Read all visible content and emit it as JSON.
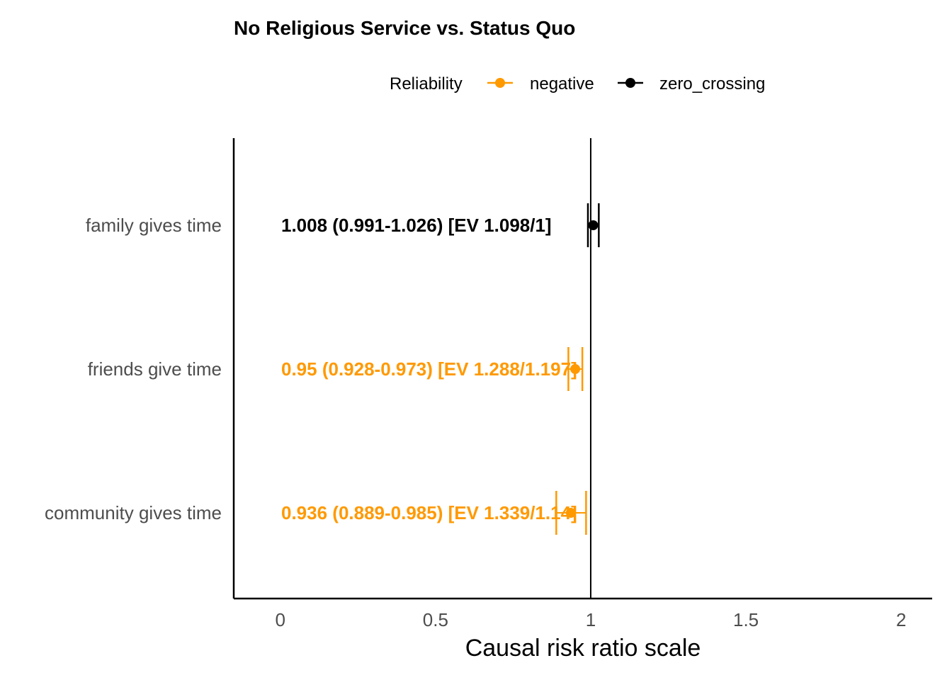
{
  "chart_data": {
    "type": "forest",
    "title": "No Religious Service vs. Status Quo",
    "xlabel": "Causal risk ratio scale",
    "ylabel": "",
    "xlim": [
      -0.15,
      2.1
    ],
    "xticks": [
      0,
      0.5,
      1,
      1.5,
      2
    ],
    "xtick_labels": [
      "0",
      "0.5",
      "1",
      "1.5",
      "2"
    ],
    "reference_line": 1,
    "grid": false,
    "legend": {
      "title": "Reliability",
      "position": "top",
      "items": [
        {
          "name": "negative",
          "color": "#FF9900"
        },
        {
          "name": "zero_crossing",
          "color": "#000000"
        }
      ]
    },
    "rows": [
      {
        "category": "family gives time",
        "estimate": 1.008,
        "lower": 0.991,
        "upper": 1.026,
        "reliability": "zero_crossing",
        "label": "1.008 (0.991-1.026) [EV 1.098/1]"
      },
      {
        "category": "friends give time",
        "estimate": 0.95,
        "lower": 0.928,
        "upper": 0.973,
        "reliability": "negative",
        "label": "0.95 (0.928-0.973) [EV 1.288/1.197]"
      },
      {
        "category": "community gives time",
        "estimate": 0.936,
        "lower": 0.889,
        "upper": 0.985,
        "reliability": "negative",
        "label": "0.936 (0.889-0.985) [EV 1.339/1.14]"
      }
    ]
  }
}
